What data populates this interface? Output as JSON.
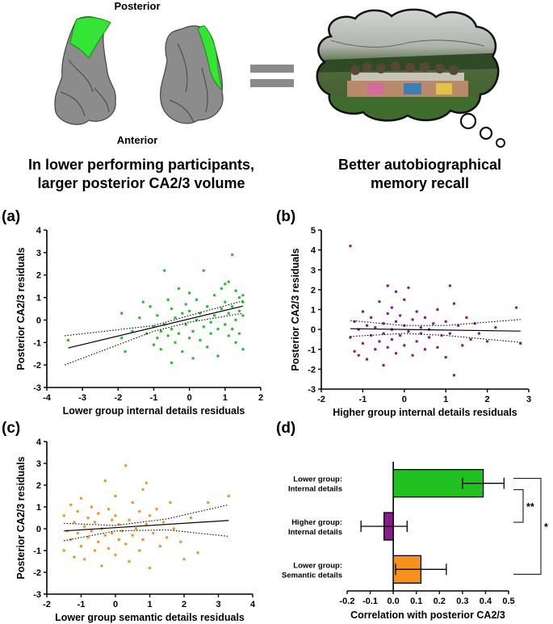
{
  "header": {
    "posterior_label": "Posterior",
    "anterior_label": "Anterior",
    "left_caption_line1": "In lower performing participants,",
    "left_caption_line2": "larger posterior CA2/3 volume",
    "right_caption_line1": "Better autobiographical",
    "right_caption_line2": "memory recall"
  },
  "colors": {
    "green": "#22c122",
    "purple": "#8b1a8b",
    "orange": "#f5921e",
    "brain_gray": "#8c8c8c",
    "brain_highlight": "#35e535"
  },
  "chart_data": [
    {
      "panel": "(a)",
      "type": "scatter",
      "color": "#22c122",
      "xlabel": "Lower group internal details residuals",
      "ylabel": "Posterior CA2/3 residuals",
      "xlim": [
        -4,
        2
      ],
      "ylim": [
        -3,
        4
      ],
      "xticks": [
        -4,
        -3,
        -2,
        -1,
        0,
        1,
        2
      ],
      "yticks": [
        -3,
        -2,
        -1,
        0,
        1,
        2,
        3,
        4
      ],
      "fit": {
        "slope": 0.38,
        "intercept": 0.05
      },
      "ci_band": {
        "lower": [
          [
            -3.5,
            -2.0
          ],
          [
            -1,
            -0.5
          ],
          [
            0,
            -0.1
          ],
          [
            1.5,
            0.3
          ]
        ],
        "upper": [
          [
            -3.5,
            -0.7
          ],
          [
            -1,
            -0.25
          ],
          [
            0,
            0.2
          ],
          [
            1.5,
            0.85
          ]
        ]
      },
      "points": [
        [
          -3.4,
          -0.9
        ],
        [
          -1.9,
          0.3
        ],
        [
          -1.9,
          -0.8
        ],
        [
          -1.8,
          -1.4
        ],
        [
          -1.6,
          -0.5
        ],
        [
          -1.4,
          0.1
        ],
        [
          -1.3,
          0.8
        ],
        [
          -1.2,
          -0.6
        ],
        [
          -1.1,
          0.6
        ],
        [
          -1.0,
          -0.3
        ],
        [
          -1.0,
          -1.1
        ],
        [
          -0.9,
          -0.8
        ],
        [
          -0.9,
          0.2
        ],
        [
          -0.8,
          -0.5
        ],
        [
          -0.8,
          -1.3
        ],
        [
          -0.7,
          2.2
        ],
        [
          -0.7,
          -0.2
        ],
        [
          -0.6,
          0.9
        ],
        [
          -0.6,
          -0.7
        ],
        [
          -0.5,
          0.5
        ],
        [
          -0.5,
          -1.9
        ],
        [
          -0.5,
          -0.4
        ],
        [
          -0.4,
          0.1
        ],
        [
          -0.4,
          -1.0
        ],
        [
          -0.3,
          1.4
        ],
        [
          -0.3,
          -0.6
        ],
        [
          -0.2,
          0.3
        ],
        [
          -0.2,
          -1.4
        ],
        [
          -0.1,
          -0.2
        ],
        [
          -0.1,
          0.7
        ],
        [
          0.0,
          -0.8
        ],
        [
          0.0,
          0.4
        ],
        [
          0.0,
          1.2
        ],
        [
          0.1,
          -0.5
        ],
        [
          0.1,
          -1.7
        ],
        [
          0.2,
          0.0
        ],
        [
          0.2,
          0.9
        ],
        [
          0.3,
          -0.9
        ],
        [
          0.3,
          0.3
        ],
        [
          0.4,
          2.2
        ],
        [
          0.4,
          -0.3
        ],
        [
          0.5,
          -1.2
        ],
        [
          0.5,
          0.6
        ],
        [
          0.6,
          -0.1
        ],
        [
          0.6,
          -0.6
        ],
        [
          0.7,
          1.1
        ],
        [
          0.7,
          0.2
        ],
        [
          0.8,
          -0.4
        ],
        [
          0.8,
          -1.6
        ],
        [
          0.9,
          0.5
        ],
        [
          0.9,
          1.4
        ],
        [
          1.0,
          -0.2
        ],
        [
          1.0,
          0.8
        ],
        [
          1.0,
          1.6
        ],
        [
          1.1,
          -0.7
        ],
        [
          1.1,
          0.3
        ],
        [
          1.1,
          1.7
        ],
        [
          1.2,
          2.9
        ],
        [
          1.2,
          -0.4
        ],
        [
          1.2,
          0.6
        ],
        [
          1.3,
          1.3
        ],
        [
          1.3,
          -1.0
        ],
        [
          1.3,
          0.0
        ],
        [
          1.4,
          1.0
        ],
        [
          1.4,
          -0.6
        ],
        [
          1.4,
          0.4
        ],
        [
          1.5,
          1.1
        ],
        [
          1.5,
          -1.3
        ],
        [
          1.5,
          0.2
        ],
        [
          1.5,
          0.8
        ]
      ]
    },
    {
      "panel": "(b)",
      "type": "scatter",
      "color": "#8b1a8b",
      "xlabel": "Higher group internal details residuals",
      "ylabel": "Posterior CA2/3 residuals",
      "xlim": [
        -2,
        3
      ],
      "ylim": [
        -3,
        5
      ],
      "xticks": [
        -2,
        -1,
        0,
        1,
        2,
        3
      ],
      "yticks": [
        -3,
        -2,
        -1,
        0,
        1,
        2,
        3,
        4,
        5
      ],
      "fit": {
        "slope": -0.03,
        "intercept": 0.0
      },
      "ci_band": {
        "lower": [
          [
            -1.3,
            -0.35
          ],
          [
            0,
            -0.2
          ],
          [
            1,
            -0.3
          ],
          [
            2.8,
            -0.65
          ]
        ],
        "upper": [
          [
            -1.3,
            0.45
          ],
          [
            0,
            0.2
          ],
          [
            1,
            0.2
          ],
          [
            2.8,
            0.5
          ]
        ]
      },
      "points": [
        [
          -1.3,
          4.2
        ],
        [
          -1.3,
          -0.4
        ],
        [
          -1.2,
          0.4
        ],
        [
          -1.2,
          -1.1
        ],
        [
          -1.1,
          0.0
        ],
        [
          -1.1,
          -1.3
        ],
        [
          -1.0,
          0.9
        ],
        [
          -1.0,
          -0.7
        ],
        [
          -0.9,
          0.2
        ],
        [
          -0.9,
          -1.5
        ],
        [
          -0.8,
          -0.3
        ],
        [
          -0.8,
          0.6
        ],
        [
          -0.7,
          -1.0
        ],
        [
          -0.7,
          0.1
        ],
        [
          -0.6,
          1.4
        ],
        [
          -0.6,
          -0.6
        ],
        [
          -0.5,
          0.3
        ],
        [
          -0.5,
          -1.8
        ],
        [
          -0.5,
          -0.2
        ],
        [
          -0.4,
          0.8
        ],
        [
          -0.4,
          2.2
        ],
        [
          -0.4,
          -0.9
        ],
        [
          -0.3,
          0.0
        ],
        [
          -0.3,
          1.1
        ],
        [
          -0.3,
          -0.5
        ],
        [
          -0.2,
          1.9
        ],
        [
          -0.2,
          -1.2
        ],
        [
          -0.2,
          0.4
        ],
        [
          -0.1,
          -0.3
        ],
        [
          -0.1,
          0.7
        ],
        [
          0.0,
          -0.8
        ],
        [
          0.0,
          0.2
        ],
        [
          0.0,
          1.5
        ],
        [
          0.1,
          2.1
        ],
        [
          0.1,
          -0.1
        ],
        [
          0.2,
          -1.3
        ],
        [
          0.2,
          0.5
        ],
        [
          0.3,
          -0.6
        ],
        [
          0.3,
          0.9
        ],
        [
          0.4,
          -0.2
        ],
        [
          0.4,
          0.1
        ],
        [
          0.5,
          -1.0
        ],
        [
          0.5,
          0.6
        ],
        [
          0.6,
          0.0
        ],
        [
          0.6,
          -0.4
        ],
        [
          0.7,
          0.3
        ],
        [
          0.8,
          -0.9
        ],
        [
          0.8,
          1.0
        ],
        [
          0.9,
          -0.3
        ],
        [
          1.0,
          0.4
        ],
        [
          1.0,
          -1.4
        ],
        [
          1.1,
          2.2
        ],
        [
          1.1,
          -0.2
        ],
        [
          1.2,
          -2.3
        ],
        [
          1.2,
          1.3
        ],
        [
          1.3,
          0.2
        ],
        [
          1.4,
          -0.8
        ],
        [
          1.5,
          0.6
        ],
        [
          1.6,
          -0.5
        ],
        [
          1.7,
          0.3
        ],
        [
          1.8,
          -0.2
        ],
        [
          2.0,
          -0.6
        ],
        [
          2.2,
          0.1
        ],
        [
          2.7,
          1.1
        ],
        [
          2.8,
          -0.7
        ]
      ]
    },
    {
      "panel": "(c)",
      "type": "scatter",
      "color": "#f5921e",
      "xlabel": "Lower group semantic details residuals",
      "ylabel": "Posterior CA2/3 residuals",
      "xlim": [
        -2,
        4
      ],
      "ylim": [
        -3,
        4
      ],
      "xticks": [
        -2,
        -1,
        0,
        1,
        2,
        3,
        4
      ],
      "yticks": [
        -3,
        -2,
        -1,
        0,
        1,
        2,
        3,
        4
      ],
      "fit": {
        "slope": 0.1,
        "intercept": 0.05
      },
      "ci_band": {
        "lower": [
          [
            -1.5,
            -0.55
          ],
          [
            0,
            -0.1
          ],
          [
            1.5,
            -0.05
          ],
          [
            3.3,
            -0.35
          ]
        ],
        "upper": [
          [
            -1.5,
            0.25
          ],
          [
            0,
            0.15
          ],
          [
            1.5,
            0.45
          ],
          [
            3.3,
            1.1
          ]
        ]
      },
      "points": [
        [
          -1.5,
          -1.0
        ],
        [
          -1.5,
          0.6
        ],
        [
          -1.4,
          -0.1
        ],
        [
          -1.3,
          1.1
        ],
        [
          -1.3,
          -0.5
        ],
        [
          -1.2,
          0.3
        ],
        [
          -1.2,
          -1.3
        ],
        [
          -1.1,
          0.8
        ],
        [
          -1.1,
          -0.2
        ],
        [
          -1.0,
          1.4
        ],
        [
          -1.0,
          -0.8
        ],
        [
          -0.9,
          0.1
        ],
        [
          -0.9,
          -1.4
        ],
        [
          -0.8,
          0.5
        ],
        [
          -0.8,
          -0.4
        ],
        [
          -0.7,
          1.0
        ],
        [
          -0.7,
          -0.1
        ],
        [
          -0.6,
          -1.0
        ],
        [
          -0.6,
          0.3
        ],
        [
          -0.5,
          -0.6
        ],
        [
          -0.5,
          0.7
        ],
        [
          -0.4,
          -1.7
        ],
        [
          -0.4,
          0.0
        ],
        [
          -0.3,
          2.2
        ],
        [
          -0.3,
          -0.3
        ],
        [
          -0.2,
          0.9
        ],
        [
          -0.2,
          -0.9
        ],
        [
          -0.1,
          0.4
        ],
        [
          -0.1,
          -0.2
        ],
        [
          0.0,
          -1.2
        ],
        [
          0.0,
          0.6
        ],
        [
          0.0,
          1.5
        ],
        [
          0.1,
          -0.5
        ],
        [
          0.1,
          0.2
        ],
        [
          0.2,
          -0.1
        ],
        [
          0.3,
          2.9
        ],
        [
          0.3,
          -0.7
        ],
        [
          0.4,
          0.4
        ],
        [
          0.4,
          -1.5
        ],
        [
          0.5,
          1.2
        ],
        [
          0.5,
          -0.3
        ],
        [
          0.6,
          0.0
        ],
        [
          0.7,
          -1.0
        ],
        [
          0.7,
          0.8
        ],
        [
          0.8,
          1.8
        ],
        [
          0.8,
          -0.5
        ],
        [
          0.9,
          0.2
        ],
        [
          0.9,
          2.1
        ],
        [
          1.0,
          -1.8
        ],
        [
          1.0,
          0.6
        ],
        [
          1.1,
          -0.2
        ],
        [
          1.2,
          0.9
        ],
        [
          1.3,
          -0.8
        ],
        [
          1.4,
          0.3
        ],
        [
          1.5,
          -0.4
        ],
        [
          1.6,
          1.2
        ],
        [
          1.7,
          0.0
        ],
        [
          1.9,
          -0.6
        ],
        [
          2.0,
          -1.4
        ],
        [
          2.2,
          0.5
        ],
        [
          2.4,
          -1.1
        ],
        [
          2.7,
          1.2
        ],
        [
          3.3,
          1.5
        ]
      ]
    },
    {
      "panel": "(d)",
      "type": "bar",
      "orientation": "horizontal",
      "xlabel": "Correlation with posterior CA2/3",
      "xlim": [
        -0.2,
        0.5
      ],
      "xticks": [
        "-0.2",
        "-0.1",
        "0.0",
        "0.1",
        "0.2",
        "0.3",
        "0.4",
        "0.5"
      ],
      "bars": [
        {
          "label_line1": "Lower group:",
          "label_line2": "Internal details",
          "value": 0.39,
          "error": 0.09,
          "color": "#22c122"
        },
        {
          "label_line1": "Higher group:",
          "label_line2": "Internal details",
          "value": -0.04,
          "error": 0.1,
          "color": "#8b1a8b"
        },
        {
          "label_line1": "Lower group:",
          "label_line2": "Semantic details",
          "value": 0.12,
          "error": 0.11,
          "color": "#f5921e"
        }
      ],
      "significance": [
        {
          "between": [
            0,
            1
          ],
          "label": "**"
        },
        {
          "between": [
            0,
            2
          ],
          "label": "*"
        }
      ]
    }
  ]
}
